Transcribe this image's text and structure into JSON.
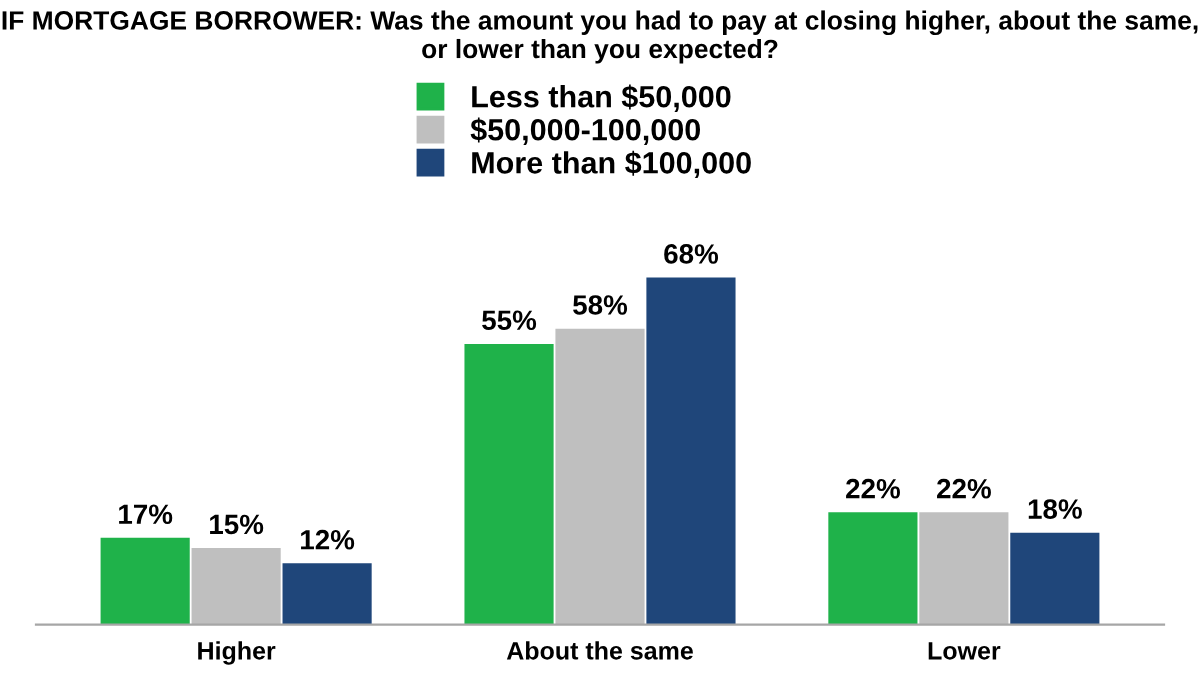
{
  "chart_data": {
    "type": "bar",
    "title": "IF MORTGAGE BORROWER: Was the amount you had to pay at closing higher, about the same, or lower than you expected?",
    "categories": [
      "Higher",
      "About the same",
      "Lower"
    ],
    "series": [
      {
        "name": "Less than $50,000",
        "color": "#1fb24a",
        "values": [
          17,
          55,
          22
        ],
        "value_labels": [
          "17%",
          "55%",
          "22%"
        ]
      },
      {
        "name": "$50,000-100,000",
        "color": "#bfbfbf",
        "values": [
          15,
          58,
          22
        ],
        "value_labels": [
          "15%",
          "58%",
          "22%"
        ]
      },
      {
        "name": "More than $100,000",
        "color": "#1f467a",
        "values": [
          12,
          68,
          18
        ],
        "value_labels": [
          "12%",
          "68%",
          "18%"
        ]
      }
    ],
    "legend": "top",
    "grid": false
  }
}
